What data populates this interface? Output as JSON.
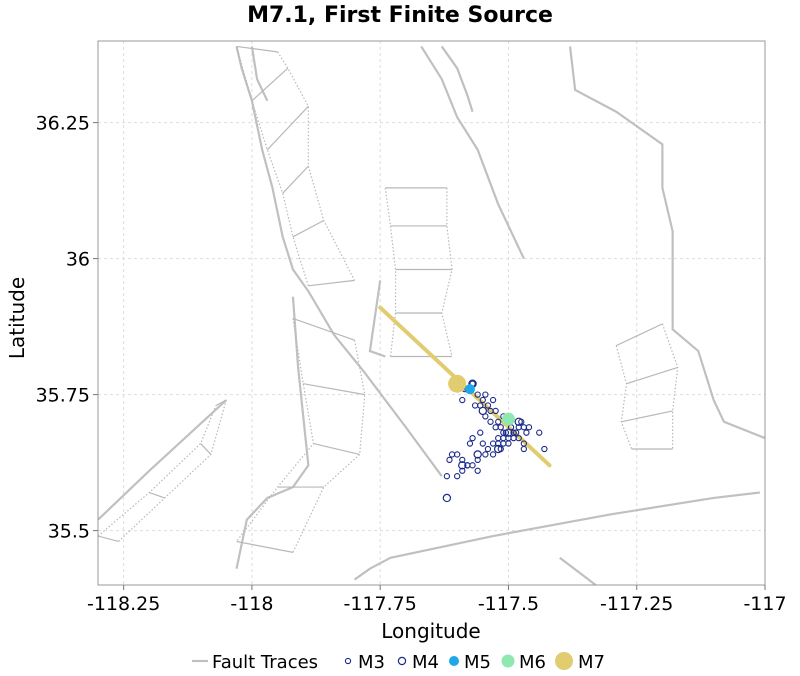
{
  "chart_data": {
    "type": "scatter",
    "title": "M7.1, First Finite Source",
    "xlabel": "Longitude",
    "ylabel": "Latitude",
    "xlim": [
      -118.3,
      -117.0
    ],
    "ylim": [
      35.4,
      36.4
    ],
    "xticks": [
      -118.25,
      -118,
      -117.75,
      -117.5,
      -117.25,
      -117
    ],
    "xtick_labels": [
      "-118.25",
      "-118",
      "-117.75",
      "-117.5",
      "-117.25",
      "-117"
    ],
    "yticks": [
      35.5,
      35.75,
      36,
      36.25
    ],
    "ytick_labels": [
      "35.5",
      "35.75",
      "36",
      "36.25"
    ],
    "grid": true,
    "colors": {
      "fault": "#c0c0c0",
      "fault_dotted": "#b8b8b8",
      "m3": "#1a2a8a",
      "m4": "#1a2a8a",
      "m5": "#1ea8e8",
      "m6": "#8ee8b0",
      "m7": "#e2cc70",
      "rupture": "#e2cc70",
      "grid": "#dddddd",
      "frame": "#999999"
    },
    "legend": {
      "placement": "bottom",
      "entries": [
        {
          "label": "Fault Traces",
          "kind": "line"
        },
        {
          "label": "M3",
          "kind": "m3"
        },
        {
          "label": "M4",
          "kind": "m4"
        },
        {
          "label": "M5",
          "kind": "m5"
        },
        {
          "label": "M6",
          "kind": "m6"
        },
        {
          "label": "M7",
          "kind": "m7"
        }
      ]
    },
    "rupture_trace": [
      [
        -117.75,
        35.91
      ],
      [
        -117.42,
        35.62
      ]
    ],
    "fault_traces": [
      [
        [
          -118.03,
          36.39
        ],
        [
          -118.02,
          36.35
        ],
        [
          -118.0,
          36.29
        ],
        [
          -117.98,
          36.2
        ],
        [
          -117.96,
          36.13
        ],
        [
          -117.94,
          36.04
        ],
        [
          -117.92,
          35.98
        ],
        [
          -117.89,
          35.94
        ],
        [
          -117.84,
          35.86
        ],
        [
          -117.78,
          35.79
        ],
        [
          -117.7,
          35.69
        ],
        [
          -117.63,
          35.6
        ]
      ],
      [
        [
          -118.0,
          36.39
        ],
        [
          -117.99,
          36.33
        ],
        [
          -117.97,
          36.29
        ]
      ],
      [
        [
          -117.92,
          35.93
        ],
        [
          -117.91,
          35.8
        ],
        [
          -117.89,
          35.62
        ],
        [
          -117.92,
          35.58
        ],
        [
          -117.97,
          35.56
        ],
        [
          -118.01,
          35.52
        ],
        [
          -118.03,
          35.43
        ]
      ],
      [
        [
          -117.8,
          35.41
        ],
        [
          -117.77,
          35.43
        ],
        [
          -117.73,
          35.45
        ],
        [
          -117.63,
          35.47
        ],
        [
          -117.53,
          35.49
        ],
        [
          -117.3,
          35.53
        ],
        [
          -117.1,
          35.56
        ],
        [
          -117.01,
          35.57
        ]
      ],
      [
        [
          -118.3,
          35.52
        ],
        [
          -118.2,
          35.61
        ],
        [
          -118.05,
          35.74
        ]
      ],
      [
        [
          -117.67,
          36.39
        ],
        [
          -117.63,
          36.33
        ],
        [
          -117.6,
          36.26
        ],
        [
          -117.56,
          36.2
        ],
        [
          -117.52,
          36.1
        ],
        [
          -117.47,
          36.0
        ]
      ],
      [
        [
          -117.63,
          36.39
        ],
        [
          -117.6,
          36.35
        ],
        [
          -117.58,
          36.3
        ],
        [
          -117.57,
          36.27
        ]
      ],
      [
        [
          -117.38,
          36.39
        ],
        [
          -117.37,
          36.31
        ],
        [
          -117.29,
          36.27
        ],
        [
          -117.2,
          36.21
        ],
        [
          -117.2,
          36.13
        ],
        [
          -117.18,
          36.05
        ],
        [
          -117.18,
          35.94
        ],
        [
          -117.18,
          35.87
        ],
        [
          -117.13,
          35.83
        ],
        [
          -117.1,
          35.74
        ],
        [
          -117.08,
          35.7
        ],
        [
          -117.0,
          35.67
        ]
      ],
      [
        [
          -117.4,
          35.45
        ],
        [
          -117.33,
          35.4
        ]
      ],
      [
        [
          -117.75,
          35.96
        ],
        [
          -117.77,
          35.83
        ],
        [
          -117.74,
          35.82
        ]
      ]
    ],
    "series": [
      {
        "name": "M3",
        "marker": "small-ring",
        "x": [
          -117.6,
          -117.585,
          -117.59,
          -117.58,
          -117.57,
          -117.56,
          -117.555,
          -117.55,
          -117.545,
          -117.54,
          -117.535,
          -117.53,
          -117.525,
          -117.52,
          -117.515,
          -117.51,
          -117.505,
          -117.5,
          -117.495,
          -117.49,
          -117.485,
          -117.48,
          -117.475,
          -117.47,
          -117.465,
          -117.46,
          -117.44,
          -117.43,
          -117.555,
          -117.55,
          -117.545,
          -117.54,
          -117.53,
          -117.52,
          -117.515,
          -117.51,
          -117.5,
          -117.49,
          -117.57,
          -117.575,
          -117.58,
          -117.59,
          -117.6,
          -117.61,
          -117.615,
          -117.62,
          -117.6,
          -117.59,
          -117.58,
          -117.57,
          -117.56,
          -117.56,
          -117.53,
          -117.52,
          -117.51,
          -117.5,
          -117.49,
          -117.48,
          -117.47,
          -117.47,
          -117.565,
          -117.545,
          -117.535,
          -117.525,
          -117.51
        ],
        "y": [
          35.78,
          35.76,
          35.74,
          35.76,
          35.77,
          35.75,
          35.73,
          35.74,
          35.75,
          35.73,
          35.72,
          35.74,
          35.72,
          35.7,
          35.69,
          35.71,
          35.68,
          35.7,
          35.69,
          35.67,
          35.68,
          35.69,
          35.7,
          35.69,
          35.68,
          35.69,
          35.68,
          35.65,
          35.68,
          35.66,
          35.64,
          35.65,
          35.66,
          35.67,
          35.65,
          35.66,
          35.67,
          35.68,
          35.67,
          35.66,
          35.62,
          35.63,
          35.64,
          35.64,
          35.63,
          35.6,
          35.6,
          35.61,
          35.62,
          35.62,
          35.63,
          35.61,
          35.64,
          35.66,
          35.67,
          35.66,
          35.68,
          35.67,
          35.65,
          35.66,
          35.73,
          35.71,
          35.7,
          35.69,
          35.68
        ]
      },
      {
        "name": "M4",
        "marker": "ring",
        "x": [
          -117.57,
          -117.55,
          -117.5,
          -117.48,
          -117.56,
          -117.52,
          -117.59,
          -117.62
        ],
        "y": [
          35.77,
          35.72,
          35.68,
          35.7,
          35.64,
          35.65,
          35.62,
          35.56
        ]
      },
      {
        "name": "M5",
        "marker": "dot",
        "x": [
          -117.575
        ],
        "y": [
          35.76
        ]
      },
      {
        "name": "M6",
        "marker": "dot",
        "x": [
          -117.5
        ],
        "y": [
          35.705
        ]
      },
      {
        "name": "M7",
        "marker": "dot",
        "x": [
          -117.6
        ],
        "y": [
          35.77
        ]
      }
    ]
  }
}
